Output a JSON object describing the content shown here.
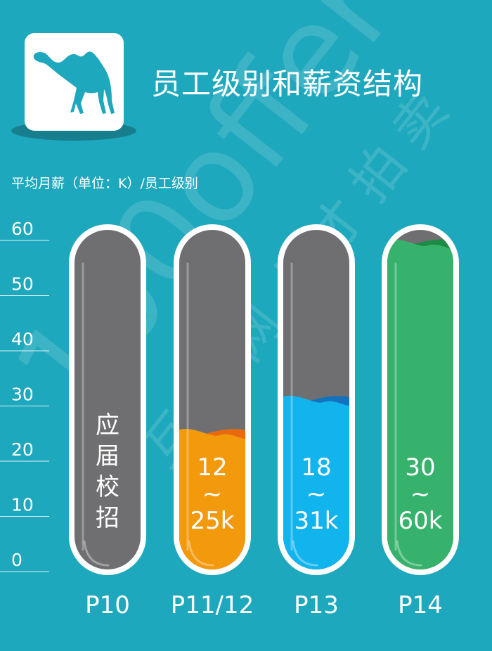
{
  "header": {
    "title": "员工级别和薪资结构",
    "logo_icon": "camel-icon"
  },
  "unit_label": "平均月薪（单位：K）/员工级别",
  "watermark": {
    "text": "100offer",
    "subtext": "互联网人才拍卖"
  },
  "colors": {
    "background": "#1ea8bd",
    "tube": "#6f6f71",
    "orange": "#f39a0c",
    "blue": "#12b4ee",
    "green": "#37b26c"
  },
  "chart_data": {
    "type": "bar",
    "ylim": [
      0,
      60
    ],
    "yticks": [
      "0",
      "10",
      "20",
      "30",
      "40",
      "50",
      "60"
    ],
    "categories": [
      "P10",
      "P11/12",
      "P13",
      "P14"
    ],
    "bars": [
      {
        "category": "P10",
        "value": null,
        "label_chars": [
          "应",
          "届",
          "校",
          "招"
        ],
        "color": "#6f6f71"
      },
      {
        "category": "P11/12",
        "value": 25,
        "label_top": "12",
        "label_sep": "~",
        "label_bottom": "25k",
        "color": "#f39a0c",
        "wave_color": "#e8690e"
      },
      {
        "category": "P13",
        "value": 31,
        "label_top": "18",
        "label_sep": "~",
        "label_bottom": "31k",
        "color": "#12b4ee",
        "wave_color": "#1372be"
      },
      {
        "category": "P14",
        "value": 60,
        "label_top": "30",
        "label_sep": "~",
        "label_bottom": "60k",
        "color": "#37b26c",
        "wave_color": "#1f8a47"
      }
    ]
  }
}
